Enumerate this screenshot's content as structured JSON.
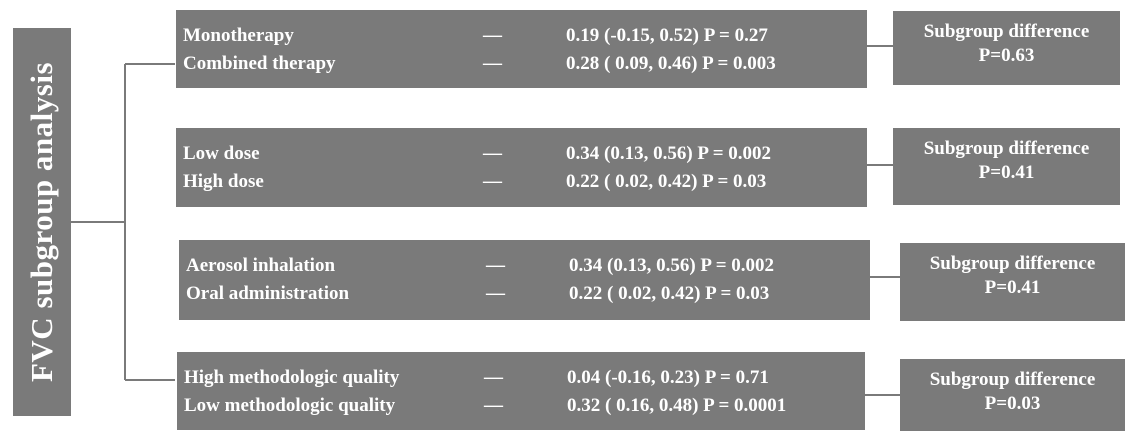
{
  "title": "FVC subgroup analysis",
  "dash": "—",
  "groups": [
    {
      "rows": [
        {
          "label": "Monotherapy",
          "value": "0.19 (-0.15, 0.52) P = 0.27"
        },
        {
          "label": "Combined therapy",
          "value": "0.28 ( 0.09, 0.46) P = 0.003"
        }
      ],
      "diff_title": "Subgroup difference",
      "diff_value": "P=0.63"
    },
    {
      "rows": [
        {
          "label": "Low dose",
          "value": "0.34 (0.13, 0.56) P = 0.002"
        },
        {
          "label": "High dose",
          "value": "0.22 ( 0.02, 0.42) P = 0.03"
        }
      ],
      "diff_title": "Subgroup difference",
      "diff_value": "P=0.41"
    },
    {
      "rows": [
        {
          "label": "Aerosol inhalation",
          "value": "0.34 (0.13, 0.56) P = 0.002"
        },
        {
          "label": "Oral administration",
          "value": "0.22 ( 0.02, 0.42) P = 0.03"
        }
      ],
      "diff_title": "Subgroup difference",
      "diff_value": "P=0.41"
    },
    {
      "rows": [
        {
          "label": "High methodologic quality",
          "value": "0.04 (-0.16, 0.23) P = 0.71"
        },
        {
          "label": "Low methodologic quality",
          "value": "0.32 ( 0.16, 0.48) P = 0.0001"
        }
      ],
      "diff_title": "Subgroup difference",
      "diff_value": "P=0.03"
    }
  ],
  "colors": {
    "box": "#7a7a7a",
    "line": "#7a7a7a",
    "text": "#ffffff"
  }
}
